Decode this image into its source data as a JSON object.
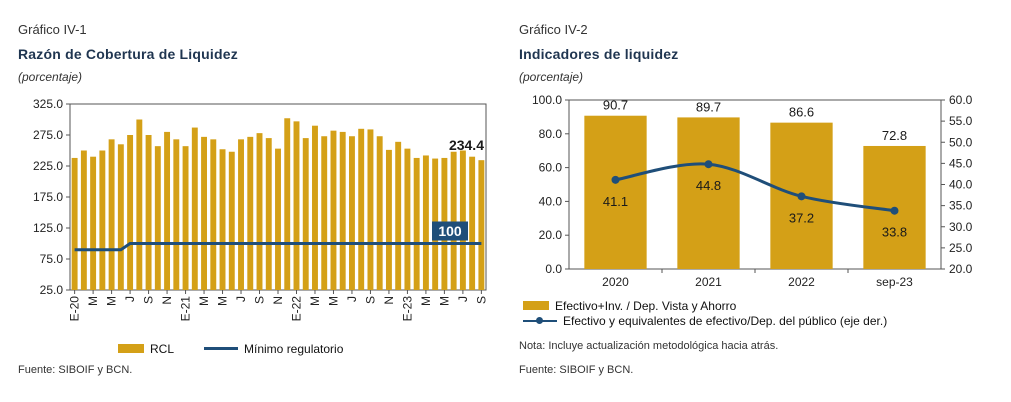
{
  "left": {
    "tag": "Gráfico IV-1",
    "title": "Razón de Cobertura de Liquidez",
    "unit": "(porcentaje)",
    "source": "Fuente: SIBOIF y BCN.",
    "legend": {
      "bar": "RCL",
      "line": "Mínimo regulatorio"
    }
  },
  "right": {
    "tag": "Gráfico IV-2",
    "title": "Indicadores de liquidez",
    "unit": "(porcentaje)",
    "note": "Nota: Incluye actualización metodológica hacia atrás.",
    "source": "Fuente: SIBOIF y BCN.",
    "legend": {
      "bar": "Efectivo+Inv. / Dep. Vista y Ahorro",
      "line": "Efectivo y equivalentes de efectivo/Dep. del público (eje der.)"
    }
  },
  "chart_data": [
    {
      "type": "bar",
      "title": "Razón de Cobertura de Liquidez",
      "ylabel": "(porcentaje)",
      "ylim": [
        25,
        325
      ],
      "yticks": [
        "325.0",
        "275.0",
        "225.0",
        "175.0",
        "125.0",
        "75.0",
        "25.0"
      ],
      "ytick_values": [
        325,
        275,
        225,
        175,
        125,
        75,
        25
      ],
      "xtick_labels": [
        "E-20",
        "M",
        "M",
        "J",
        "S",
        "N",
        "E-21",
        "M",
        "M",
        "J",
        "S",
        "N",
        "E-22",
        "M",
        "M",
        "J",
        "S",
        "N",
        "E-23",
        "M",
        "M",
        "J",
        "S"
      ],
      "xtick_index": [
        0,
        2,
        4,
        6,
        8,
        10,
        12,
        14,
        16,
        18,
        20,
        22,
        24,
        26,
        28,
        30,
        32,
        34,
        36,
        38,
        40,
        42,
        44
      ],
      "bar_color": "#d4a017",
      "line_color": "#1f4e79",
      "series": [
        {
          "name": "RCL",
          "values": [
            238,
            250,
            240,
            250,
            268,
            260,
            275,
            300,
            275,
            257,
            280,
            268,
            257,
            287,
            272,
            268,
            252,
            248,
            268,
            272,
            278,
            270,
            253,
            302,
            297,
            270,
            290,
            273,
            282,
            280,
            273,
            285,
            284,
            273,
            251,
            264,
            253,
            238,
            242,
            237,
            238,
            248,
            250,
            240,
            234.4
          ]
        },
        {
          "name": "Mínimo regulatorio",
          "values": [
            90,
            90,
            90,
            90,
            90,
            90,
            100,
            100,
            100,
            100,
            100,
            100,
            100,
            100,
            100,
            100,
            100,
            100,
            100,
            100,
            100,
            100,
            100,
            100,
            100,
            100,
            100,
            100,
            100,
            100,
            100,
            100,
            100,
            100,
            100,
            100,
            100,
            100,
            100,
            100,
            100,
            100,
            100,
            100,
            100
          ]
        }
      ],
      "annotations": [
        "234.4",
        "100"
      ],
      "grid": false,
      "legend_position": "bottom"
    },
    {
      "type": "bar",
      "title": "Indicadores de liquidez",
      "ylabel": "(porcentaje)",
      "categories": [
        "2020",
        "2021",
        "2022",
        "sep-23"
      ],
      "ylim": [
        0,
        100
      ],
      "y2lim": [
        20,
        60
      ],
      "yticks": [
        "100.0",
        "80.0",
        "60.0",
        "40.0",
        "20.0",
        "0.0"
      ],
      "ytick_values": [
        100,
        80,
        60,
        40,
        20,
        0
      ],
      "y2ticks": [
        "60.0",
        "55.0",
        "50.0",
        "45.0",
        "40.0",
        "35.0",
        "30.0",
        "25.0",
        "20.0"
      ],
      "y2tick_values": [
        60,
        55,
        50,
        45,
        40,
        35,
        30,
        25,
        20
      ],
      "bar_color": "#d4a017",
      "line_color": "#1f4e79",
      "series": [
        {
          "name": "Efectivo+Inv. / Dep. Vista y Ahorro",
          "values": [
            90.7,
            89.7,
            86.6,
            72.8
          ],
          "labels": [
            "90.7",
            "89.7",
            "86.6",
            "72.8"
          ]
        },
        {
          "name": "Efectivo y equivalentes de efectivo/Dep. del público (eje der.)",
          "axis": "right",
          "values": [
            41.1,
            44.8,
            37.2,
            33.8
          ],
          "labels": [
            "41.1",
            "44.8",
            "37.2",
            "33.8"
          ]
        }
      ],
      "grid": false,
      "legend_position": "bottom"
    }
  ]
}
